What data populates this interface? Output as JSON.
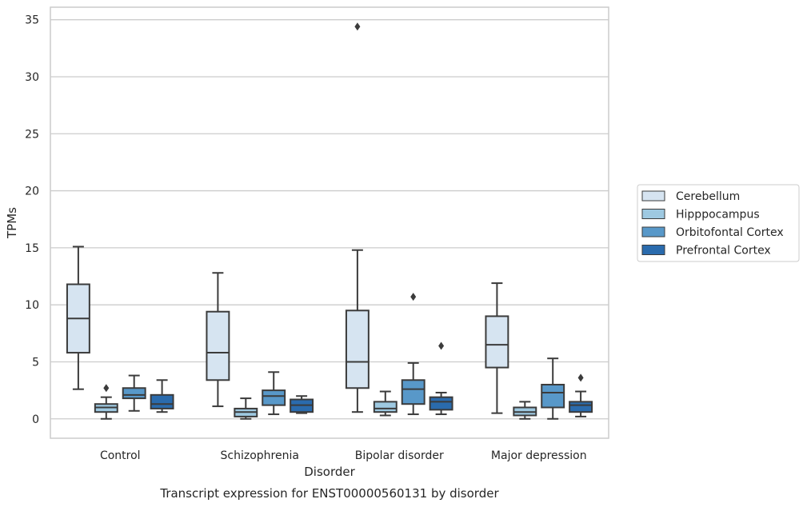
{
  "chart_data": {
    "type": "box",
    "title": "Transcript expression for ENST00000560131 by disorder",
    "xlabel": "Disorder",
    "ylabel": "TPMs",
    "ylim": [
      -1.7,
      36.1
    ],
    "yticks": [
      0,
      5,
      10,
      15,
      20,
      25,
      30,
      35
    ],
    "grid": "horizontal",
    "legend_position": "right",
    "categories": [
      "Control",
      "Schizophrenia",
      "Bipolar disorder",
      "Major depression"
    ],
    "series": [
      {
        "name": "Cerebellum",
        "color": "#d6e4f1",
        "boxes": [
          {
            "whisker_low": 2.6,
            "q1": 5.8,
            "median": 8.8,
            "q3": 11.8,
            "whisker_high": 15.1,
            "outliers": []
          },
          {
            "whisker_low": 1.1,
            "q1": 3.4,
            "median": 5.8,
            "q3": 9.4,
            "whisker_high": 12.8,
            "outliers": []
          },
          {
            "whisker_low": 0.6,
            "q1": 2.7,
            "median": 5.0,
            "q3": 9.5,
            "whisker_high": 14.8,
            "outliers": [
              34.4
            ]
          },
          {
            "whisker_low": 0.5,
            "q1": 4.5,
            "median": 6.5,
            "q3": 9.0,
            "whisker_high": 11.9,
            "outliers": []
          }
        ]
      },
      {
        "name": "Hipppocampus",
        "color": "#9ec9e1",
        "boxes": [
          {
            "whisker_low": 0.0,
            "q1": 0.6,
            "median": 1.0,
            "q3": 1.3,
            "whisker_high": 1.9,
            "outliers": [
              2.7
            ]
          },
          {
            "whisker_low": 0.0,
            "q1": 0.2,
            "median": 0.6,
            "q3": 0.9,
            "whisker_high": 1.8,
            "outliers": []
          },
          {
            "whisker_low": 0.3,
            "q1": 0.6,
            "median": 0.9,
            "q3": 1.5,
            "whisker_high": 2.4,
            "outliers": []
          },
          {
            "whisker_low": 0.0,
            "q1": 0.3,
            "median": 0.6,
            "q3": 1.0,
            "whisker_high": 1.5,
            "outliers": []
          }
        ]
      },
      {
        "name": "Orbitofontal Cortex",
        "color": "#5898c9",
        "boxes": [
          {
            "whisker_low": 0.7,
            "q1": 1.8,
            "median": 2.1,
            "q3": 2.7,
            "whisker_high": 3.8,
            "outliers": []
          },
          {
            "whisker_low": 0.4,
            "q1": 1.2,
            "median": 2.0,
            "q3": 2.5,
            "whisker_high": 4.1,
            "outliers": []
          },
          {
            "whisker_low": 0.4,
            "q1": 1.3,
            "median": 2.6,
            "q3": 3.4,
            "whisker_high": 4.9,
            "outliers": [
              10.7
            ]
          },
          {
            "whisker_low": 0.0,
            "q1": 1.0,
            "median": 2.3,
            "q3": 3.0,
            "whisker_high": 5.3,
            "outliers": []
          }
        ]
      },
      {
        "name": "Prefrontal Cortex",
        "color": "#2a6bad",
        "boxes": [
          {
            "whisker_low": 0.6,
            "q1": 0.9,
            "median": 1.3,
            "q3": 2.1,
            "whisker_high": 3.4,
            "outliers": []
          },
          {
            "whisker_low": 0.5,
            "q1": 0.6,
            "median": 1.2,
            "q3": 1.7,
            "whisker_high": 2.0,
            "outliers": []
          },
          {
            "whisker_low": 0.4,
            "q1": 0.8,
            "median": 1.5,
            "q3": 1.9,
            "whisker_high": 2.3,
            "outliers": [
              6.4
            ]
          },
          {
            "whisker_low": 0.2,
            "q1": 0.6,
            "median": 1.2,
            "q3": 1.5,
            "whisker_high": 2.4,
            "outliers": [
              3.6
            ]
          }
        ]
      }
    ]
  }
}
